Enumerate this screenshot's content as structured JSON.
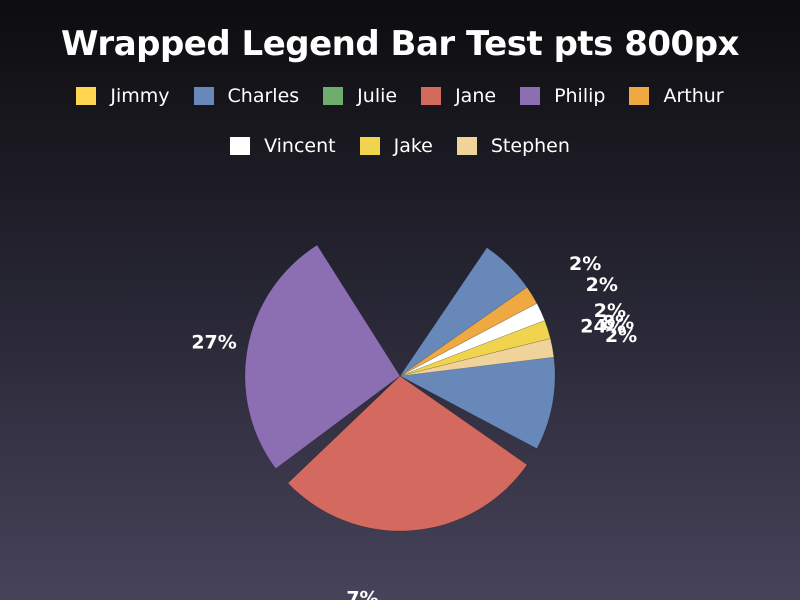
{
  "chart_data": {
    "type": "pie",
    "title": "Wrapped Legend Bar Test pts 800px",
    "legend_placement": "top",
    "slices": [
      {
        "name": "Jimmy",
        "value": 8,
        "label": "8%",
        "color": "#ffd54f"
      },
      {
        "name": "Charles",
        "value": 24,
        "label": "24%",
        "color": "#6788b8"
      },
      {
        "name": "Julie",
        "value": 7,
        "label": "7%",
        "color": "#6fad6e"
      },
      {
        "name": "Jane",
        "value": 29,
        "label": "29%",
        "color": "#d46a5f"
      },
      {
        "name": "Philip",
        "value": 27,
        "label": "27%",
        "color": "#8c6fb3"
      },
      {
        "name": "Arthur",
        "value": 2,
        "label": "2%",
        "color": "#f0a840"
      },
      {
        "name": "Vincent",
        "value": 2,
        "label": "2%",
        "color": "#ffffff"
      },
      {
        "name": "Jake",
        "value": 2,
        "label": "2%",
        "color": "#f0d44e"
      },
      {
        "name": "Stephen",
        "value": 2,
        "label": "2%",
        "color": "#f0d39a"
      }
    ]
  }
}
